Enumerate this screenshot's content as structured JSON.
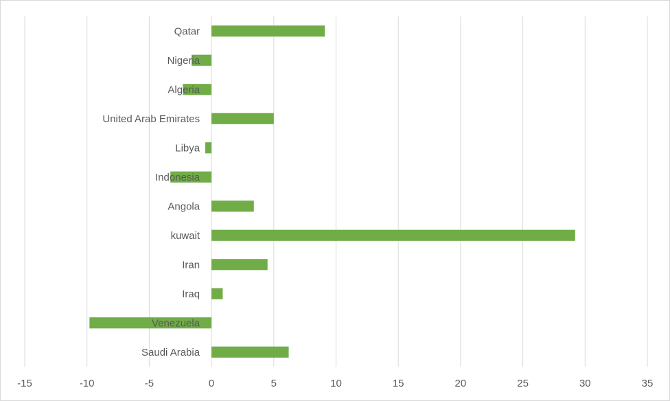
{
  "chart_data": {
    "type": "bar",
    "orientation": "horizontal",
    "title": "",
    "xlabel": "",
    "ylabel": "",
    "categories": [
      "Saudi Arabia",
      "Venezuela",
      "Iraq",
      "Iran",
      "kuwait",
      "Angola",
      "Indonesia",
      "Libya",
      "United Arab Emirates",
      "Algeria",
      "Nigeria",
      "Qatar"
    ],
    "values": [
      6.2,
      -9.8,
      0.9,
      4.5,
      29.2,
      3.4,
      -3.3,
      -0.5,
      5.0,
      -2.3,
      -1.6,
      9.1
    ],
    "xlim": [
      -15,
      35
    ],
    "xticks": [
      "-15",
      "-10",
      "-5",
      "0",
      "5",
      "10",
      "15",
      "20",
      "25",
      "30",
      "35"
    ],
    "grid": "vertical",
    "legend": "none",
    "bar_color": "#70ad47",
    "grid_color": "#d9d9d9",
    "label_color": "#595959"
  }
}
